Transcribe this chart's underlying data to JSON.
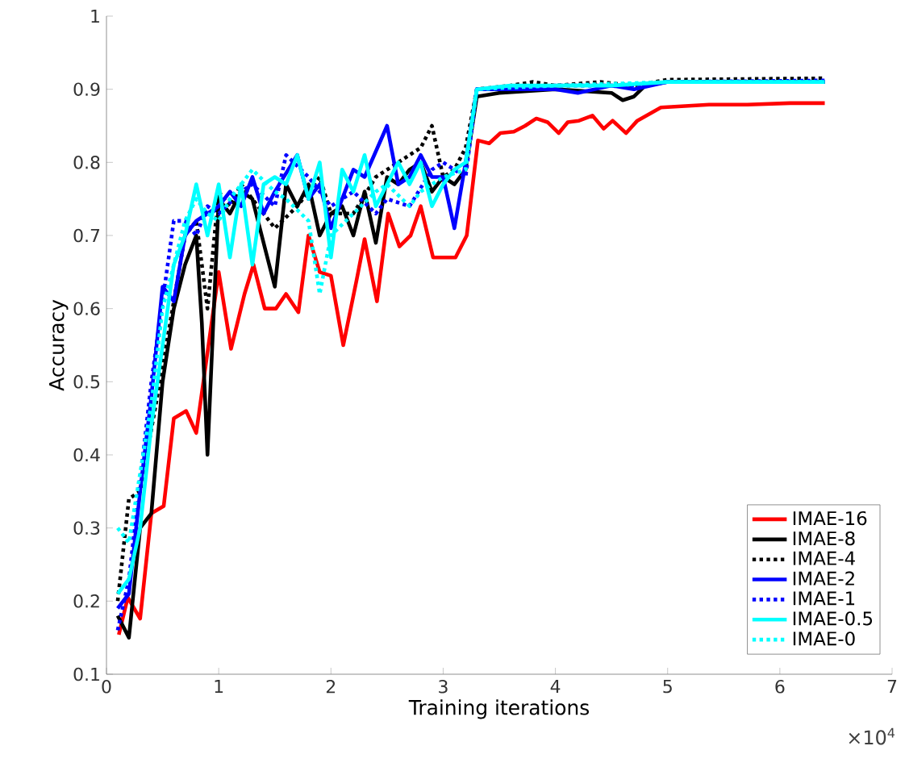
{
  "chart_data": {
    "type": "line",
    "xlabel": "Training iterations",
    "ylabel": "Accuracy",
    "annotations": [
      "×10$^{4}$"
    ],
    "xlim": [
      0,
      7
    ],
    "xticks": [
      0,
      1,
      2,
      3,
      4,
      5,
      6,
      7
    ],
    "ylim": [
      0.1,
      1
    ],
    "yticks": [
      0.1,
      0.2,
      0.3,
      0.4,
      0.5,
      0.6,
      0.7,
      0.8,
      0.9,
      1
    ],
    "legend": "bottom right",
    "marker": "none",
    "series": [
      {
        "name": "IMAE-16",
        "color": "#ff0000",
        "line_style": "solid",
        "x": [
          0.11,
          0.19,
          0.3,
          0.4,
          0.51,
          0.6,
          0.71,
          0.8,
          0.9,
          1.0,
          1.11,
          1.23,
          1.31,
          1.41,
          1.51,
          1.6,
          1.71,
          1.8,
          1.9,
          2.0,
          2.11,
          2.23,
          2.3,
          2.41,
          2.51,
          2.61,
          2.71,
          2.8,
          2.91,
          3.11,
          3.21,
          3.31,
          3.41,
          3.51,
          3.63,
          3.73,
          3.83,
          3.93,
          4.03,
          4.11,
          4.21,
          4.33,
          4.43,
          4.51,
          4.63,
          4.73,
          4.94,
          5.37,
          5.71,
          6.09,
          6.4
        ],
        "values": [
          0.154,
          0.205,
          0.176,
          0.32,
          0.33,
          0.45,
          0.46,
          0.43,
          0.54,
          0.65,
          0.545,
          0.62,
          0.66,
          0.6,
          0.6,
          0.62,
          0.595,
          0.7,
          0.65,
          0.645,
          0.55,
          0.64,
          0.695,
          0.61,
          0.73,
          0.685,
          0.7,
          0.74,
          0.67,
          0.67,
          0.7,
          0.83,
          0.826,
          0.84,
          0.842,
          0.85,
          0.86,
          0.855,
          0.84,
          0.855,
          0.857,
          0.864,
          0.846,
          0.857,
          0.84,
          0.857,
          0.875,
          0.879,
          0.879,
          0.881,
          0.881
        ]
      },
      {
        "name": "IMAE-8",
        "color": "#000000",
        "line_style": "solid",
        "x": [
          0.1,
          0.2,
          0.3,
          0.4,
          0.5,
          0.6,
          0.7,
          0.8,
          0.85,
          0.9,
          1.0,
          1.1,
          1.2,
          1.3,
          1.5,
          1.6,
          1.7,
          1.8,
          1.9,
          2.0,
          2.1,
          2.2,
          2.3,
          2.4,
          2.5,
          2.6,
          2.7,
          2.8,
          2.9,
          3.0,
          3.1,
          3.2,
          3.3,
          3.5,
          4.0,
          4.5,
          4.6,
          4.7,
          4.8,
          5.0,
          6.4
        ],
        "values": [
          0.18,
          0.15,
          0.3,
          0.32,
          0.5,
          0.6,
          0.66,
          0.7,
          0.58,
          0.4,
          0.75,
          0.73,
          0.76,
          0.75,
          0.63,
          0.77,
          0.74,
          0.77,
          0.7,
          0.73,
          0.74,
          0.7,
          0.76,
          0.69,
          0.78,
          0.77,
          0.79,
          0.8,
          0.76,
          0.78,
          0.77,
          0.79,
          0.89,
          0.895,
          0.9,
          0.895,
          0.885,
          0.89,
          0.905,
          0.91,
          0.91
        ]
      },
      {
        "name": "IMAE-4",
        "color": "#000000",
        "line_style": "dotted",
        "x": [
          0.1,
          0.2,
          0.3,
          0.5,
          0.7,
          0.8,
          0.9,
          1.0,
          1.1,
          1.2,
          1.4,
          1.5,
          1.7,
          1.9,
          2.0,
          2.2,
          2.4,
          2.6,
          2.8,
          2.9,
          3.0,
          3.1,
          3.2,
          3.3,
          3.6,
          3.8,
          4.0,
          4.4,
          4.7,
          5.0,
          6.4
        ],
        "values": [
          0.2,
          0.34,
          0.35,
          0.52,
          0.7,
          0.72,
          0.6,
          0.76,
          0.74,
          0.77,
          0.73,
          0.71,
          0.74,
          0.78,
          0.73,
          0.73,
          0.78,
          0.8,
          0.82,
          0.85,
          0.78,
          0.79,
          0.82,
          0.9,
          0.905,
          0.91,
          0.905,
          0.91,
          0.905,
          0.913,
          0.915
        ]
      },
      {
        "name": "IMAE-2",
        "color": "#0000ff",
        "line_style": "solid",
        "x": [
          0.1,
          0.2,
          0.3,
          0.4,
          0.5,
          0.6,
          0.7,
          0.8,
          1.0,
          1.1,
          1.2,
          1.3,
          1.4,
          1.5,
          1.7,
          1.8,
          1.9,
          2.0,
          2.2,
          2.3,
          2.5,
          2.6,
          2.7,
          2.8,
          2.9,
          3.0,
          3.1,
          3.2,
          3.3,
          3.5,
          4.0,
          4.2,
          4.5,
          4.7,
          5.0,
          6.4
        ],
        "values": [
          0.19,
          0.21,
          0.35,
          0.48,
          0.63,
          0.61,
          0.7,
          0.72,
          0.74,
          0.76,
          0.74,
          0.78,
          0.73,
          0.76,
          0.81,
          0.75,
          0.77,
          0.71,
          0.79,
          0.78,
          0.85,
          0.77,
          0.78,
          0.81,
          0.78,
          0.78,
          0.71,
          0.8,
          0.9,
          0.9,
          0.9,
          0.895,
          0.905,
          0.9,
          0.91,
          0.91
        ]
      },
      {
        "name": "IMAE-1",
        "color": "#0000ff",
        "line_style": "dotted",
        "x": [
          0.1,
          0.2,
          0.4,
          0.6,
          0.7,
          0.8,
          0.9,
          1.0,
          1.2,
          1.3,
          1.5,
          1.6,
          1.8,
          2.0,
          2.2,
          2.4,
          2.5,
          2.7,
          2.9,
          3.0,
          3.1,
          3.2,
          3.3,
          4.0,
          4.8,
          5.0,
          6.4
        ],
        "values": [
          0.16,
          0.23,
          0.5,
          0.72,
          0.72,
          0.7,
          0.74,
          0.73,
          0.76,
          0.77,
          0.74,
          0.81,
          0.78,
          0.74,
          0.76,
          0.73,
          0.75,
          0.74,
          0.79,
          0.8,
          0.79,
          0.78,
          0.9,
          0.905,
          0.905,
          0.91,
          0.912
        ]
      },
      {
        "name": "IMAE-0.5",
        "color": "#00ffff",
        "line_style": "solid",
        "x": [
          0.1,
          0.2,
          0.3,
          0.4,
          0.5,
          0.6,
          0.7,
          0.8,
          0.9,
          1.0,
          1.1,
          1.2,
          1.3,
          1.4,
          1.5,
          1.6,
          1.7,
          1.8,
          1.9,
          2.0,
          2.1,
          2.2,
          2.3,
          2.4,
          2.6,
          2.7,
          2.8,
          2.9,
          3.0,
          3.1,
          3.2,
          3.3,
          3.6,
          4.0,
          4.5,
          5.0,
          6.4
        ],
        "values": [
          0.21,
          0.23,
          0.3,
          0.44,
          0.55,
          0.66,
          0.7,
          0.77,
          0.7,
          0.77,
          0.67,
          0.77,
          0.66,
          0.77,
          0.78,
          0.77,
          0.81,
          0.75,
          0.8,
          0.67,
          0.79,
          0.76,
          0.81,
          0.74,
          0.8,
          0.77,
          0.8,
          0.74,
          0.77,
          0.79,
          0.8,
          0.9,
          0.905,
          0.905,
          0.905,
          0.91,
          0.91
        ]
      },
      {
        "name": "IMAE-0",
        "color": "#00ffff",
        "line_style": "dotted",
        "x": [
          0.1,
          0.2,
          0.4,
          0.5,
          0.7,
          0.8,
          0.9,
          1.0,
          1.1,
          1.3,
          1.5,
          1.6,
          1.8,
          1.9,
          2.0,
          2.2,
          2.4,
          2.5,
          2.7,
          2.8,
          3.0,
          3.2,
          3.3,
          4.0,
          5.0,
          6.4
        ],
        "values": [
          0.3,
          0.28,
          0.47,
          0.6,
          0.72,
          0.75,
          0.73,
          0.72,
          0.75,
          0.79,
          0.76,
          0.75,
          0.72,
          0.62,
          0.7,
          0.73,
          0.76,
          0.77,
          0.74,
          0.76,
          0.78,
          0.79,
          0.9,
          0.905,
          0.91,
          0.91
        ]
      }
    ]
  }
}
